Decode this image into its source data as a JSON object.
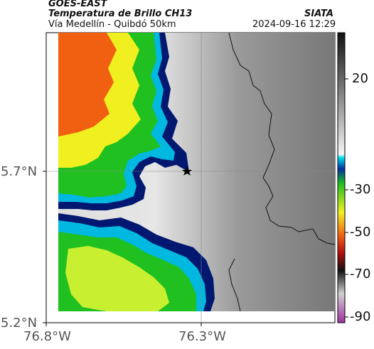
{
  "header": {
    "source": "GOES-EAST",
    "product": "Temperatura de Brillo CH13",
    "route": "Vía Medellín - Quibdó 50km",
    "org": "SIATA",
    "datetime": "2024-09-16 12:29"
  },
  "map": {
    "lat_ticks": [
      "5.7°N",
      "5.2°N"
    ],
    "lon_ticks": [
      "76.8°W",
      "76.3°W"
    ],
    "marker": "star",
    "colors": {
      "cold_warm_orange": "#f06010",
      "yellow": "#f0f020",
      "green": "#20c020",
      "cyan": "#00e0f0",
      "dark_blue": "#001870",
      "surface_gray": "#d0d0d0"
    }
  },
  "colorbar": {
    "ticks": [
      "20",
      "-30",
      "-50",
      "-70",
      "-90"
    ]
  }
}
